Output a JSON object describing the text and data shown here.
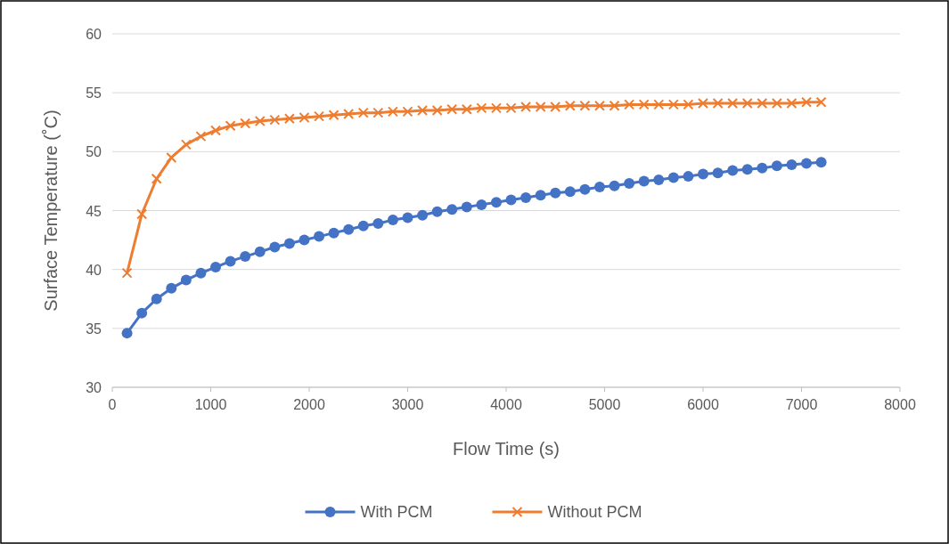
{
  "chart_data": {
    "type": "line",
    "xlabel": "Flow Time (s)",
    "ylabel": "Surface Temperature (˚C)",
    "x": [
      150,
      300,
      450,
      600,
      750,
      900,
      1050,
      1200,
      1350,
      1500,
      1650,
      1800,
      1950,
      2100,
      2250,
      2400,
      2550,
      2700,
      2850,
      3000,
      3150,
      3300,
      3450,
      3600,
      3750,
      3900,
      4050,
      4200,
      4350,
      4500,
      4650,
      4800,
      4950,
      5100,
      5250,
      5400,
      5550,
      5700,
      5850,
      6000,
      6150,
      6300,
      6450,
      6600,
      6750,
      6900,
      7050,
      7200
    ],
    "series": [
      {
        "name": "With PCM",
        "color": "#4472c4",
        "marker": "circle",
        "values": [
          34.6,
          36.3,
          37.5,
          38.4,
          39.1,
          39.7,
          40.2,
          40.7,
          41.1,
          41.5,
          41.9,
          42.2,
          42.5,
          42.8,
          43.1,
          43.4,
          43.7,
          43.9,
          44.2,
          44.4,
          44.6,
          44.9,
          45.1,
          45.3,
          45.5,
          45.7,
          45.9,
          46.1,
          46.3,
          46.5,
          46.6,
          46.8,
          47.0,
          47.1,
          47.3,
          47.5,
          47.6,
          47.8,
          47.9,
          48.1,
          48.2,
          48.4,
          48.5,
          48.6,
          48.8,
          48.9,
          49.0,
          49.1
        ]
      },
      {
        "name": "Without PCM",
        "color": "#ed7d31",
        "marker": "cross",
        "values": [
          39.7,
          44.7,
          47.7,
          49.5,
          50.6,
          51.3,
          51.8,
          52.2,
          52.4,
          52.6,
          52.7,
          52.8,
          52.9,
          53.0,
          53.1,
          53.2,
          53.3,
          53.3,
          53.4,
          53.4,
          53.5,
          53.5,
          53.6,
          53.6,
          53.7,
          53.7,
          53.7,
          53.8,
          53.8,
          53.8,
          53.9,
          53.9,
          53.9,
          53.9,
          54.0,
          54.0,
          54.0,
          54.0,
          54.0,
          54.1,
          54.1,
          54.1,
          54.1,
          54.1,
          54.1,
          54.1,
          54.2,
          54.2
        ]
      }
    ],
    "xlim": [
      0,
      8000
    ],
    "xticks": [
      0,
      1000,
      2000,
      3000,
      4000,
      5000,
      6000,
      7000,
      8000
    ],
    "ylim": [
      30,
      60
    ],
    "yticks": [
      30,
      35,
      40,
      45,
      50,
      55,
      60
    ],
    "grid": "y",
    "legend": "bottom"
  }
}
